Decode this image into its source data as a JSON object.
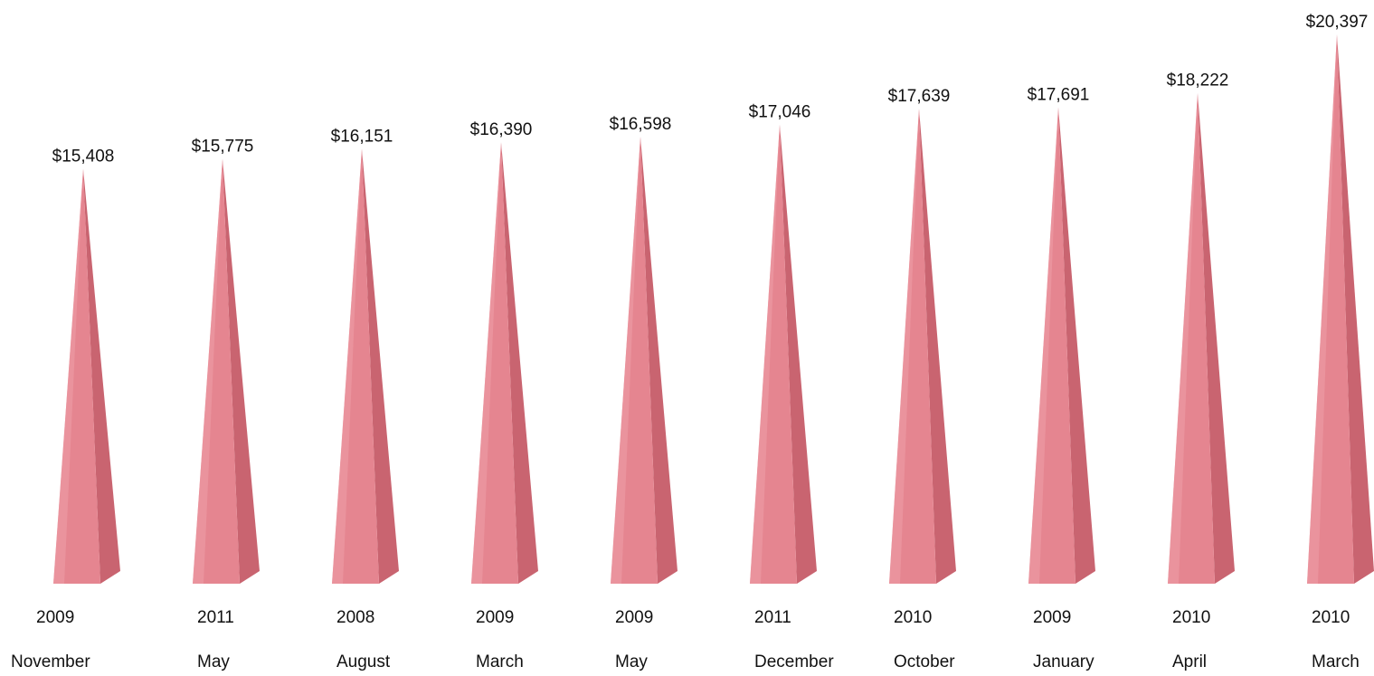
{
  "chart_data": {
    "type": "bar",
    "bar_shape": "pyramid",
    "categories": [
      {
        "year": "2009",
        "month": "November"
      },
      {
        "year": "2011",
        "month": "May"
      },
      {
        "year": "2008",
        "month": "August"
      },
      {
        "year": "2009",
        "month": "March"
      },
      {
        "year": "2009",
        "month": "May"
      },
      {
        "year": "2011",
        "month": "December"
      },
      {
        "year": "2010",
        "month": "October"
      },
      {
        "year": "2009",
        "month": "January"
      },
      {
        "year": "2010",
        "month": "April"
      },
      {
        "year": "2010",
        "month": "March"
      }
    ],
    "values": [
      15408,
      15775,
      16151,
      16390,
      16598,
      17046,
      17639,
      17691,
      18222,
      20397
    ],
    "value_labels": [
      "$15,408",
      "$15,775",
      "$16,151",
      "$16,390",
      "$16,598",
      "$17,046",
      "$17,639",
      "$17,691",
      "$18,222",
      "$20,397"
    ],
    "title": "",
    "xlabel": "",
    "ylabel": "",
    "ylim": [
      0,
      21000
    ],
    "grid": false,
    "legend": "none",
    "colors": {
      "front_face": "#e58590",
      "side_face": "#c96470",
      "base_top": "#ef9ea8",
      "text": "#111111"
    }
  }
}
